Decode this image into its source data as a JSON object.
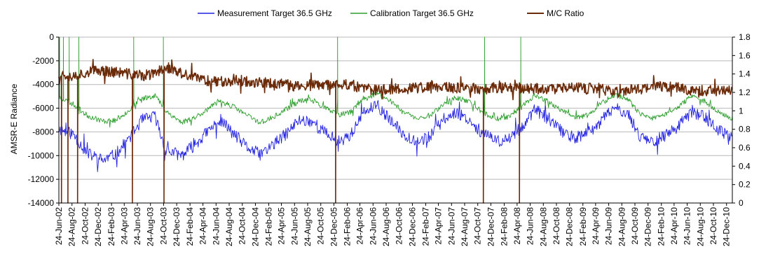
{
  "chart_data": {
    "type": "line",
    "title": "",
    "ylabel": "AMSR-E Radiance",
    "y2label": "",
    "ylim": [
      -14000,
      0
    ],
    "y2lim": [
      0,
      1.8
    ],
    "ytick_labels": [
      "0",
      "-2000",
      "-4000",
      "-6000",
      "-8000",
      "-10000",
      "-12000",
      "-14000"
    ],
    "y2tick_labels": [
      "1.8",
      "1.6",
      "1.4",
      "1.2",
      "1",
      "0.8",
      "0.6",
      "0.4",
      "0.2",
      "0"
    ],
    "grid": true,
    "legend_placement": "top",
    "x_start": "2002-06-24",
    "x_end": "2011-01-20",
    "x_tick_labels": [
      "24-Jun-02",
      "24-Aug-02",
      "24-Oct-02",
      "24-Dec-02",
      "24-Feb-03",
      "24-Apr-03",
      "24-Jun-03",
      "24-Aug-03",
      "24-Oct-03",
      "24-Dec-03",
      "24-Feb-04",
      "24-Apr-04",
      "24-Jun-04",
      "24-Aug-04",
      "24-Oct-04",
      "24-Dec-04",
      "24-Feb-05",
      "24-Apr-05",
      "24-Jun-05",
      "24-Aug-05",
      "24-Oct-05",
      "24-Dec-05",
      "24-Feb-06",
      "24-Apr-06",
      "24-Jun-06",
      "24-Aug-06",
      "24-Oct-06",
      "24-Dec-06",
      "24-Feb-07",
      "24-Apr-07",
      "24-Jun-07",
      "24-Aug-07",
      "24-Oct-07",
      "24-Dec-07",
      "24-Feb-08",
      "24-Apr-08",
      "24-Jun-08",
      "24-Aug-08",
      "24-Oct-08",
      "24-Dec-08",
      "24-Feb-09",
      "24-Apr-09",
      "24-Jun-09",
      "24-Aug-09",
      "24-Oct-09",
      "24-Dec-09",
      "24-Feb-10",
      "24-Apr-10",
      "24-Jun-10",
      "24-Aug-10",
      "24-Oct-10",
      "24-Dec-10"
    ],
    "series": [
      {
        "name": "Measurement Target 36.5 GHz",
        "color": "#2020e0",
        "axis": "left",
        "points": [
          [
            "2002-07-01",
            -7800
          ],
          [
            "2002-09-01",
            -8200
          ],
          [
            "2002-11-01",
            -9800
          ],
          [
            "2003-01-15",
            -10400
          ],
          [
            "2003-03-15",
            -9900
          ],
          [
            "2003-05-15",
            -8600
          ],
          [
            "2003-07-15",
            -7000
          ],
          [
            "2003-09-15",
            -6700
          ],
          [
            "2003-11-01",
            -9500
          ],
          [
            "2004-01-15",
            -10000
          ],
          [
            "2004-03-15",
            -9100
          ],
          [
            "2004-05-15",
            -8000
          ],
          [
            "2004-07-15",
            -7000
          ],
          [
            "2004-09-15",
            -8200
          ],
          [
            "2004-11-15",
            -9300
          ],
          [
            "2005-01-15",
            -9900
          ],
          [
            "2005-03-15",
            -9100
          ],
          [
            "2005-05-15",
            -8200
          ],
          [
            "2005-07-15",
            -7000
          ],
          [
            "2005-09-15",
            -7100
          ],
          [
            "2005-11-15",
            -8100
          ],
          [
            "2006-01-15",
            -8800
          ],
          [
            "2006-03-15",
            -8200
          ],
          [
            "2006-05-15",
            -6300
          ],
          [
            "2006-07-15",
            -5800
          ],
          [
            "2006-09-15",
            -7100
          ],
          [
            "2006-11-15",
            -8200
          ],
          [
            "2007-01-15",
            -8800
          ],
          [
            "2007-03-15",
            -8400
          ],
          [
            "2007-05-15",
            -7000
          ],
          [
            "2007-07-15",
            -6300
          ],
          [
            "2007-09-15",
            -7000
          ],
          [
            "2007-11-15",
            -8100
          ],
          [
            "2008-01-15",
            -8800
          ],
          [
            "2008-03-15",
            -8600
          ],
          [
            "2008-05-15",
            -7600
          ],
          [
            "2008-07-15",
            -6100
          ],
          [
            "2008-09-15",
            -6900
          ],
          [
            "2008-11-15",
            -7900
          ],
          [
            "2009-01-15",
            -8500
          ],
          [
            "2009-03-15",
            -8200
          ],
          [
            "2009-05-15",
            -7200
          ],
          [
            "2009-07-15",
            -6000
          ],
          [
            "2009-09-15",
            -6300
          ],
          [
            "2009-11-15",
            -8300
          ],
          [
            "2010-01-15",
            -8800
          ],
          [
            "2010-03-15",
            -8300
          ],
          [
            "2010-05-15",
            -7500
          ],
          [
            "2010-07-15",
            -6300
          ],
          [
            "2010-09-15",
            -6700
          ],
          [
            "2010-11-15",
            -7900
          ],
          [
            "2011-01-15",
            -8400
          ]
        ]
      },
      {
        "name": "Calibration Target 36.5 GHz",
        "color": "#2e9e2e",
        "axis": "left",
        "points": [
          [
            "2002-07-01",
            -5100
          ],
          [
            "2002-09-01",
            -5700
          ],
          [
            "2002-11-01",
            -6600
          ],
          [
            "2003-01-15",
            -7100
          ],
          [
            "2003-03-15",
            -7000
          ],
          [
            "2003-05-15",
            -6200
          ],
          [
            "2003-07-15",
            -5200
          ],
          [
            "2003-09-15",
            -4900
          ],
          [
            "2003-11-01",
            -6200
          ],
          [
            "2004-01-15",
            -7200
          ],
          [
            "2004-03-15",
            -6800
          ],
          [
            "2004-05-15",
            -6100
          ],
          [
            "2004-07-15",
            -5400
          ],
          [
            "2004-09-15",
            -5900
          ],
          [
            "2004-11-15",
            -6600
          ],
          [
            "2005-01-15",
            -7200
          ],
          [
            "2005-03-15",
            -6800
          ],
          [
            "2005-05-15",
            -6100
          ],
          [
            "2005-07-15",
            -5400
          ],
          [
            "2005-09-15",
            -5300
          ],
          [
            "2005-11-15",
            -6000
          ],
          [
            "2006-01-15",
            -6600
          ],
          [
            "2006-03-15",
            -6300
          ],
          [
            "2006-05-15",
            -5100
          ],
          [
            "2006-07-15",
            -4800
          ],
          [
            "2006-09-15",
            -5400
          ],
          [
            "2006-11-15",
            -6300
          ],
          [
            "2007-01-15",
            -6900
          ],
          [
            "2007-03-15",
            -6600
          ],
          [
            "2007-05-15",
            -5700
          ],
          [
            "2007-07-15",
            -5100
          ],
          [
            "2007-09-15",
            -5500
          ],
          [
            "2007-11-15",
            -6300
          ],
          [
            "2008-01-15",
            -6900
          ],
          [
            "2008-03-15",
            -6700
          ],
          [
            "2008-05-15",
            -5900
          ],
          [
            "2008-07-15",
            -4900
          ],
          [
            "2008-09-15",
            -5400
          ],
          [
            "2008-11-15",
            -6200
          ],
          [
            "2009-01-15",
            -6800
          ],
          [
            "2009-03-15",
            -6600
          ],
          [
            "2009-05-15",
            -5700
          ],
          [
            "2009-07-15",
            -4900
          ],
          [
            "2009-09-15",
            -5100
          ],
          [
            "2009-11-15",
            -6500
          ],
          [
            "2010-01-15",
            -6900
          ],
          [
            "2010-03-15",
            -6500
          ],
          [
            "2010-05-15",
            -5900
          ],
          [
            "2010-07-15",
            -5000
          ],
          [
            "2010-09-15",
            -5400
          ],
          [
            "2010-11-15",
            -6300
          ],
          [
            "2011-01-15",
            -6800
          ]
        ]
      },
      {
        "name": "M/C Ratio",
        "color": "#6b2a08",
        "axis": "right",
        "points": [
          [
            "2002-07-01",
            1.4
          ],
          [
            "2002-09-01",
            1.38
          ],
          [
            "2002-11-01",
            1.42
          ],
          [
            "2003-01-15",
            1.44
          ],
          [
            "2003-03-15",
            1.42
          ],
          [
            "2003-05-15",
            1.4
          ],
          [
            "2003-07-15",
            1.38
          ],
          [
            "2003-09-15",
            1.4
          ],
          [
            "2003-11-01",
            1.48
          ],
          [
            "2004-01-15",
            1.4
          ],
          [
            "2004-03-15",
            1.36
          ],
          [
            "2004-05-15",
            1.33
          ],
          [
            "2004-07-15",
            1.32
          ],
          [
            "2004-09-15",
            1.34
          ],
          [
            "2004-11-15",
            1.32
          ],
          [
            "2005-01-15",
            1.3
          ],
          [
            "2005-03-15",
            1.3
          ],
          [
            "2005-05-15",
            1.28
          ],
          [
            "2005-07-15",
            1.27
          ],
          [
            "2005-09-15",
            1.28
          ],
          [
            "2005-11-15",
            1.27
          ],
          [
            "2006-01-15",
            1.3
          ],
          [
            "2006-03-15",
            1.28
          ],
          [
            "2006-05-15",
            1.24
          ],
          [
            "2006-07-15",
            1.22
          ],
          [
            "2006-09-15",
            1.24
          ],
          [
            "2006-11-15",
            1.24
          ],
          [
            "2007-01-15",
            1.25
          ],
          [
            "2007-03-15",
            1.25
          ],
          [
            "2007-05-15",
            1.26
          ],
          [
            "2007-07-15",
            1.24
          ],
          [
            "2007-09-15",
            1.24
          ],
          [
            "2007-11-15",
            1.24
          ],
          [
            "2008-01-15",
            1.25
          ],
          [
            "2008-03-15",
            1.26
          ],
          [
            "2008-05-15",
            1.25
          ],
          [
            "2008-07-15",
            1.24
          ],
          [
            "2008-09-15",
            1.24
          ],
          [
            "2008-11-15",
            1.24
          ],
          [
            "2009-01-15",
            1.25
          ],
          [
            "2009-03-15",
            1.24
          ],
          [
            "2009-05-15",
            1.24
          ],
          [
            "2009-07-15",
            1.2
          ],
          [
            "2009-09-15",
            1.22
          ],
          [
            "2009-11-15",
            1.24
          ],
          [
            "2010-01-15",
            1.26
          ],
          [
            "2010-03-15",
            1.27
          ],
          [
            "2010-05-15",
            1.26
          ],
          [
            "2010-07-15",
            1.22
          ],
          [
            "2010-09-15",
            1.22
          ],
          [
            "2010-11-15",
            1.22
          ],
          [
            "2011-01-15",
            1.22
          ]
        ]
      }
    ],
    "annotations": {
      "ratio_spikes_to_zero": [
        "2002-07-05",
        "2002-08-05",
        "2002-09-20",
        "2003-06-02",
        "2003-10-25",
        "2006-01-01",
        "2007-11-20",
        "2008-05-05"
      ],
      "calibration_spikes_to_zero": [
        "2002-06-26",
        "2002-07-15",
        "2002-08-10",
        "2002-09-25",
        "2003-06-08",
        "2003-10-22",
        "2006-01-10",
        "2007-11-25",
        "2008-05-12"
      ]
    }
  }
}
